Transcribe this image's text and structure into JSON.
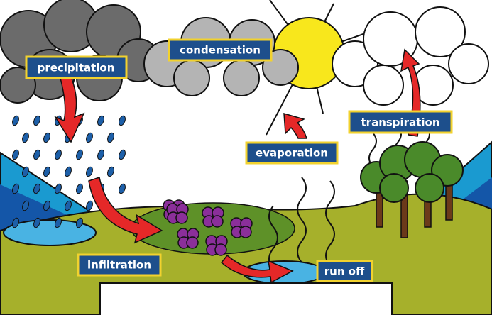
{
  "labels": [
    "precipitation",
    "condensation",
    "evaporation",
    "transpiration",
    "infiltration",
    "run off"
  ]
}
